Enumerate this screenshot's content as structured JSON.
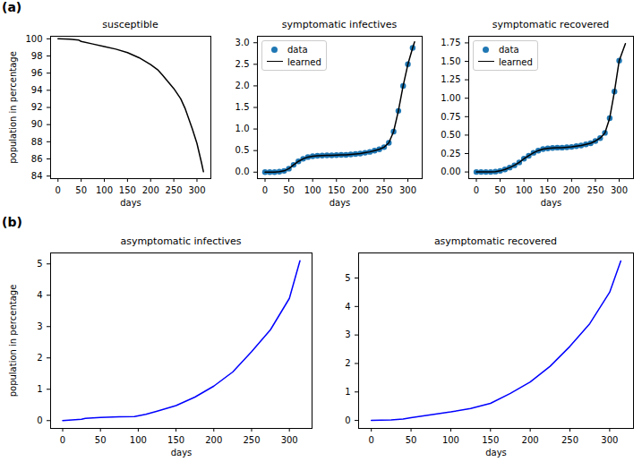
{
  "panel_labels": [
    "(a)",
    "(b)"
  ],
  "chart_data": [
    {
      "type": "line",
      "title": "susceptible",
      "xlabel": "days",
      "ylabel": "population in percentage",
      "x": [
        0,
        25,
        45,
        50,
        75,
        100,
        125,
        150,
        175,
        200,
        215,
        225,
        250,
        265,
        275,
        290,
        300,
        310,
        314
      ],
      "values": [
        100,
        99.95,
        99.85,
        99.7,
        99.4,
        99.1,
        98.8,
        98.4,
        97.8,
        97,
        96.4,
        95.8,
        94.2,
        93,
        91.8,
        89.5,
        87.8,
        85.5,
        84.5
      ],
      "color": "#000000",
      "xlim": [
        -16,
        330
      ],
      "xticks": [
        0,
        50,
        100,
        150,
        200,
        250,
        300
      ],
      "ylim": [
        83.7,
        100.3
      ],
      "yticks": [
        84,
        86,
        88,
        90,
        92,
        94,
        96,
        98,
        100
      ]
    },
    {
      "type": "line",
      "title": "symptomatic infectives",
      "xlabel": "days",
      "legend": "upper left",
      "series": [
        {
          "name": "data",
          "type": "scatter",
          "marker": "o",
          "color": "#1f77b4",
          "x": [
            0,
            10,
            20,
            30,
            40,
            50,
            60,
            70,
            80,
            90,
            100,
            110,
            120,
            130,
            140,
            150,
            160,
            170,
            180,
            190,
            200,
            210,
            220,
            230,
            240,
            250,
            260,
            270,
            280,
            290,
            300,
            310
          ],
          "values": [
            0,
            0,
            0,
            0.01,
            0.03,
            0.08,
            0.17,
            0.25,
            0.31,
            0.35,
            0.37,
            0.38,
            0.385,
            0.39,
            0.39,
            0.395,
            0.4,
            0.4,
            0.41,
            0.42,
            0.43,
            0.45,
            0.47,
            0.5,
            0.53,
            0.58,
            0.68,
            0.94,
            1.42,
            2.0,
            2.5,
            2.88
          ]
        },
        {
          "name": "learned",
          "type": "line",
          "line_style": "solid",
          "color": "#000000",
          "x": [
            0,
            10,
            20,
            30,
            40,
            50,
            60,
            70,
            80,
            90,
            100,
            110,
            120,
            130,
            140,
            150,
            160,
            170,
            180,
            190,
            200,
            210,
            220,
            230,
            240,
            250,
            260,
            270,
            280,
            290,
            300,
            310,
            314
          ],
          "values": [
            0,
            0,
            0,
            0.01,
            0.03,
            0.08,
            0.17,
            0.25,
            0.31,
            0.35,
            0.37,
            0.38,
            0.385,
            0.39,
            0.39,
            0.395,
            0.4,
            0.4,
            0.41,
            0.42,
            0.43,
            0.45,
            0.47,
            0.5,
            0.53,
            0.58,
            0.68,
            0.94,
            1.42,
            2.0,
            2.5,
            2.88,
            3.02
          ]
        }
      ],
      "xlim": [
        -16,
        330
      ],
      "xticks": [
        0,
        50,
        100,
        150,
        200,
        250,
        300
      ],
      "ylim": [
        -0.15,
        3.15
      ],
      "yticks": [
        {
          "value": 0,
          "label": "0.0"
        },
        {
          "value": 0.5,
          "label": "0.5"
        },
        {
          "value": 1,
          "label": "1.0"
        },
        {
          "value": 1.5,
          "label": "1.5"
        },
        {
          "value": 2,
          "label": "2.0"
        },
        {
          "value": 2.5,
          "label": "2.5"
        },
        {
          "value": 3,
          "label": "3.0"
        }
      ]
    },
    {
      "type": "line",
      "title": "symptomatic recovered",
      "xlabel": "days",
      "legend": "upper left",
      "series": [
        {
          "name": "data",
          "type": "scatter",
          "marker": "o",
          "color": "#1f77b4",
          "x": [
            0,
            10,
            20,
            30,
            40,
            50,
            60,
            70,
            80,
            90,
            100,
            110,
            120,
            130,
            140,
            150,
            160,
            170,
            180,
            190,
            200,
            210,
            220,
            230,
            240,
            250,
            260,
            270,
            280,
            290,
            300
          ],
          "values": [
            0,
            0,
            0,
            0,
            0.005,
            0.015,
            0.035,
            0.06,
            0.09,
            0.13,
            0.18,
            0.22,
            0.26,
            0.29,
            0.31,
            0.32,
            0.325,
            0.33,
            0.33,
            0.335,
            0.34,
            0.35,
            0.36,
            0.375,
            0.39,
            0.42,
            0.46,
            0.53,
            0.73,
            1.09,
            1.51
          ]
        },
        {
          "name": "learned",
          "type": "line",
          "line_style": "solid",
          "color": "#000000",
          "x": [
            0,
            10,
            20,
            30,
            40,
            50,
            60,
            70,
            80,
            90,
            100,
            110,
            120,
            130,
            140,
            150,
            160,
            170,
            180,
            190,
            200,
            210,
            220,
            230,
            240,
            250,
            260,
            270,
            280,
            290,
            300,
            313
          ],
          "values": [
            0,
            0,
            0,
            0,
            0.005,
            0.015,
            0.035,
            0.06,
            0.09,
            0.13,
            0.18,
            0.22,
            0.26,
            0.29,
            0.31,
            0.32,
            0.325,
            0.33,
            0.33,
            0.335,
            0.34,
            0.35,
            0.36,
            0.375,
            0.39,
            0.42,
            0.46,
            0.53,
            0.73,
            1.09,
            1.51,
            1.74
          ]
        }
      ],
      "xlim": [
        -16,
        330
      ],
      "xticks": [
        0,
        50,
        100,
        150,
        200,
        250,
        300
      ],
      "ylim": [
        -0.09,
        1.84
      ],
      "yticks": [
        {
          "value": 0,
          "label": "0.00"
        },
        {
          "value": 0.25,
          "label": "0.25"
        },
        {
          "value": 0.5,
          "label": "0.50"
        },
        {
          "value": 0.75,
          "label": "0.75"
        },
        {
          "value": 1,
          "label": "1.00"
        },
        {
          "value": 1.25,
          "label": "1.25"
        },
        {
          "value": 1.5,
          "label": "1.50"
        },
        {
          "value": 1.75,
          "label": "1.75"
        }
      ]
    },
    {
      "type": "line",
      "title": "asymptomatic infectives",
      "xlabel": "days",
      "ylabel": "population in percentage",
      "x": [
        0,
        25,
        30,
        50,
        75,
        95,
        110,
        125,
        150,
        175,
        200,
        225,
        250,
        275,
        300,
        314
      ],
      "values": [
        0,
        0.04,
        0.07,
        0.1,
        0.12,
        0.13,
        0.2,
        0.3,
        0.48,
        0.75,
        1.1,
        1.55,
        2.2,
        2.9,
        3.9,
        5.1
      ],
      "color": "#0000ff",
      "xlim": [
        -16,
        330
      ],
      "xticks": [
        0,
        50,
        100,
        150,
        200,
        250,
        300
      ],
      "ylim": [
        -0.25,
        5.35
      ],
      "yticks": [
        0,
        1,
        2,
        3,
        4,
        5
      ]
    },
    {
      "type": "line",
      "title": "asymptomatic recovered",
      "xlabel": "days",
      "x": [
        0,
        25,
        40,
        50,
        75,
        100,
        125,
        150,
        175,
        200,
        225,
        250,
        275,
        300,
        314
      ],
      "values": [
        0,
        0.02,
        0.05,
        0.1,
        0.2,
        0.3,
        0.42,
        0.6,
        0.95,
        1.35,
        1.9,
        2.6,
        3.4,
        4.5,
        5.6
      ],
      "color": "#0000ff",
      "xlim": [
        -16,
        330
      ],
      "xticks": [
        0,
        50,
        100,
        150,
        200,
        250,
        300
      ],
      "ylim": [
        -0.28,
        5.88
      ],
      "yticks": [
        0,
        1,
        2,
        3,
        4,
        5
      ]
    }
  ]
}
